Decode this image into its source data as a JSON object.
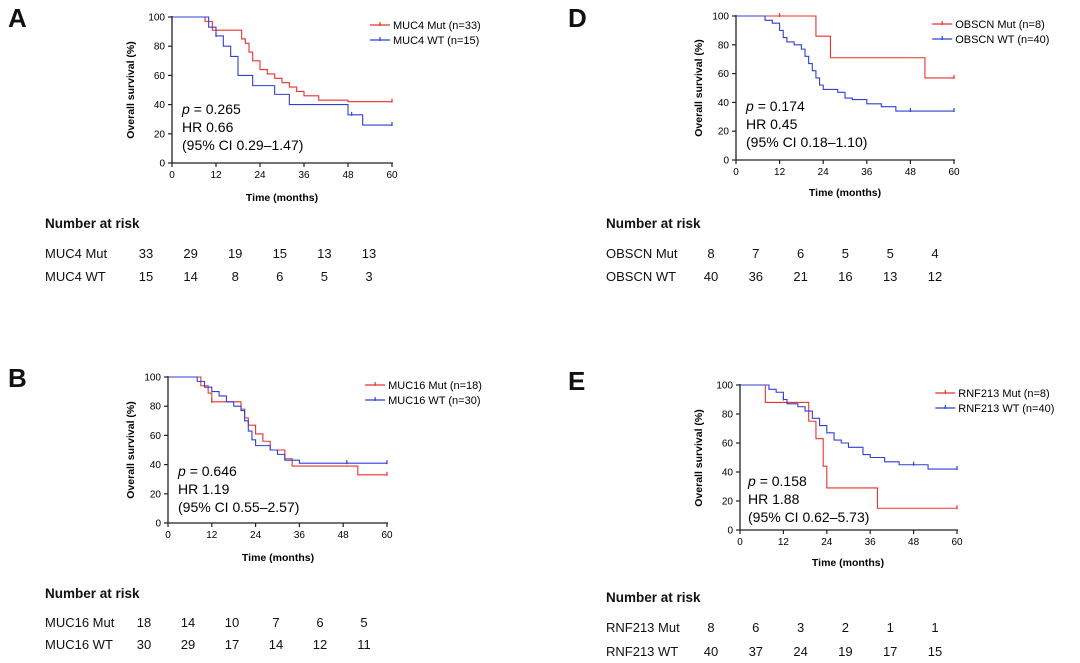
{
  "risk_title": "Number at risk",
  "panels": [
    {
      "label": "A",
      "ylabel": "Overall survival  (%)",
      "xlabel": "Time (months)",
      "stats": {
        "p_prefix": "p",
        "p_value": "= 0.265",
        "hr": "HR 0.66",
        "ci": "(95% CI 0.29–1.47)"
      },
      "risk": {
        "groups": [
          {
            "name": "MUC4 Mut",
            "values": [
              "33",
              "29",
              "19",
              "15",
              "13",
              "13"
            ]
          },
          {
            "name": "MUC4 WT",
            "values": [
              "15",
              "14",
              "8",
              "6",
              "5",
              "3"
            ]
          }
        ]
      }
    },
    {
      "label": "B",
      "ylabel": "Overall survival  (%)",
      "xlabel": "Time (months)",
      "stats": {
        "p_prefix": "p",
        "p_value": "= 0.646",
        "hr": "HR 1.19",
        "ci": "(95% CI 0.55–2.57)"
      },
      "risk": {
        "groups": [
          {
            "name": "MUC16 Mut",
            "values": [
              "18",
              "14",
              "10",
              "7",
              "6",
              "5"
            ]
          },
          {
            "name": "MUC16 WT",
            "values": [
              "30",
              "29",
              "17",
              "14",
              "12",
              "11"
            ]
          }
        ]
      }
    },
    {
      "label": "D",
      "ylabel": "Overall survival  (%)",
      "xlabel": "Time (months)",
      "stats": {
        "p_prefix": "p",
        "p_value": "= 0.174",
        "hr": "HR 0.45",
        "ci": "(95% CI 0.18–1.10)"
      },
      "risk": {
        "groups": [
          {
            "name": "OBSCN Mut",
            "values": [
              "8",
              "7",
              "6",
              "5",
              "5",
              "4"
            ]
          },
          {
            "name": "OBSCN WT",
            "values": [
              "40",
              "36",
              "21",
              "16",
              "13",
              "12"
            ]
          }
        ]
      }
    },
    {
      "label": "E",
      "ylabel": "Overall survival  (%)",
      "xlabel": "Time (months)",
      "stats": {
        "p_prefix": "p",
        "p_value": "= 0.158",
        "hr": "HR 1.88",
        "ci": "(95% CI 0.62–5.73)"
      },
      "risk": {
        "groups": [
          {
            "name": "RNF213 Mut",
            "values": [
              "8",
              "6",
              "3",
              "2",
              "1",
              "1"
            ]
          },
          {
            "name": "RNF213 WT",
            "values": [
              "40",
              "37",
              "24",
              "19",
              "17",
              "15"
            ]
          }
        ]
      }
    }
  ],
  "chart_data": [
    {
      "type": "line",
      "title": "A",
      "xlabel": "Time (months)",
      "ylabel": "Overall survival  (%)",
      "xlim": [
        0,
        60
      ],
      "ylim": [
        0,
        100
      ],
      "xticks": [
        0,
        12,
        24,
        36,
        48,
        60
      ],
      "yticks": [
        0,
        20,
        40,
        60,
        80,
        100
      ],
      "xtick_labels": [
        "0",
        "12",
        "24",
        "36",
        "48",
        "60"
      ],
      "ytick_labels": [
        "0",
        "20",
        "40",
        "60",
        "80",
        "100"
      ],
      "legend": "top-right",
      "series": [
        {
          "name": "MUC4 Mut (n=33)",
          "color": "#e8322e",
          "x": [
            0,
            9,
            11,
            18,
            19,
            20,
            21,
            22,
            24,
            26,
            28,
            30,
            32,
            34,
            36,
            40,
            48,
            60
          ],
          "y": [
            100,
            97,
            91,
            91,
            85,
            82,
            76,
            70,
            64,
            61,
            58,
            55,
            52,
            49,
            46,
            43,
            42,
            42
          ],
          "censored_x": [
            60
          ]
        },
        {
          "name": "MUC4 WT (n=15)",
          "color": "#2f3fd6",
          "x": [
            0,
            10,
            12,
            14,
            16,
            18,
            22,
            28,
            32,
            48,
            52,
            60
          ],
          "y": [
            100,
            93,
            87,
            80,
            73,
            60,
            53,
            47,
            40,
            33,
            26,
            26
          ],
          "censored_x": [
            12,
            49,
            60
          ]
        }
      ]
    },
    {
      "type": "line",
      "title": "B",
      "xlabel": "Time (months)",
      "ylabel": "Overall survival  (%)",
      "xlim": [
        0,
        60
      ],
      "ylim": [
        0,
        100
      ],
      "xticks": [
        0,
        12,
        24,
        36,
        48,
        60
      ],
      "yticks": [
        0,
        20,
        40,
        60,
        80,
        100
      ],
      "xtick_labels": [
        "0",
        "12",
        "24",
        "36",
        "48",
        "60"
      ],
      "ytick_labels": [
        "0",
        "20",
        "40",
        "60",
        "80",
        "100"
      ],
      "legend": "top-right",
      "series": [
        {
          "name": "MUC16 Mut (n=18)",
          "color": "#e8322e",
          "x": [
            0,
            9,
            11,
            12,
            20,
            21,
            22,
            24,
            26,
            28,
            32,
            34,
            40,
            52,
            60
          ],
          "y": [
            100,
            94,
            89,
            83,
            78,
            72,
            67,
            61,
            56,
            50,
            44,
            39,
            39,
            33,
            33
          ],
          "censored_x": [
            12,
            60
          ]
        },
        {
          "name": "MUC16 WT (n=30)",
          "color": "#2f3fd6",
          "x": [
            0,
            8,
            10,
            12,
            14,
            16,
            18,
            20,
            21,
            22,
            23,
            24,
            28,
            30,
            32,
            36,
            40,
            44,
            48,
            60
          ],
          "y": [
            100,
            97,
            93,
            90,
            87,
            83,
            80,
            77,
            70,
            63,
            57,
            53,
            50,
            47,
            43,
            41,
            41,
            41,
            41,
            41
          ],
          "censored_x": [
            49,
            60
          ]
        }
      ]
    },
    {
      "type": "line",
      "title": "D",
      "xlabel": "Time (months)",
      "ylabel": "Overall survival  (%)",
      "xlim": [
        0,
        60
      ],
      "ylim": [
        0,
        100
      ],
      "xticks": [
        0,
        12,
        24,
        36,
        48,
        60
      ],
      "yticks": [
        0,
        20,
        40,
        60,
        80,
        100
      ],
      "xtick_labels": [
        "0",
        "12",
        "24",
        "36",
        "48",
        "60"
      ],
      "ytick_labels": [
        "0",
        "20",
        "40",
        "60",
        "80",
        "100"
      ],
      "legend": "top-right",
      "series": [
        {
          "name": "OBSCN Mut (n=8)",
          "color": "#e8322e",
          "x": [
            0,
            22,
            26,
            52,
            60
          ],
          "y": [
            100,
            86,
            71,
            57,
            57
          ],
          "censored_x": [
            12,
            60
          ]
        },
        {
          "name": "OBSCN WT (n=40)",
          "color": "#2f3fd6",
          "x": [
            0,
            8,
            10,
            12,
            13,
            14,
            16,
            18,
            19,
            20,
            21,
            22,
            23,
            24,
            28,
            30,
            32,
            36,
            40,
            44,
            60
          ],
          "y": [
            100,
            97,
            95,
            90,
            85,
            82,
            80,
            77,
            72,
            67,
            62,
            57,
            52,
            49,
            47,
            43,
            42,
            39,
            37,
            34,
            34
          ],
          "censored_x": [
            48,
            60
          ]
        }
      ]
    },
    {
      "type": "line",
      "title": "E",
      "xlabel": "Time (months)",
      "ylabel": "Overall survival  (%)",
      "xlim": [
        0,
        60
      ],
      "ylim": [
        0,
        100
      ],
      "xticks": [
        0,
        12,
        24,
        36,
        48,
        60
      ],
      "yticks": [
        0,
        20,
        40,
        60,
        80,
        100
      ],
      "xtick_labels": [
        "0",
        "12",
        "24",
        "36",
        "48",
        "60"
      ],
      "ytick_labels": [
        "0",
        "20",
        "40",
        "60",
        "80",
        "100"
      ],
      "legend": "top-right",
      "series": [
        {
          "name": "RNF213 Mut (n=8)",
          "color": "#e8322e",
          "x": [
            0,
            7,
            19,
            21,
            23,
            24,
            38,
            60
          ],
          "y": [
            100,
            88,
            75,
            63,
            44,
            29,
            15,
            15
          ],
          "censored_x": [
            60
          ]
        },
        {
          "name": "RNF213 WT (n=40)",
          "color": "#2f3fd6",
          "x": [
            0,
            8,
            10,
            12,
            13,
            16,
            18,
            20,
            22,
            24,
            26,
            28,
            30,
            34,
            36,
            40,
            44,
            52,
            60
          ],
          "y": [
            100,
            97,
            95,
            90,
            87,
            85,
            82,
            77,
            72,
            67,
            62,
            60,
            57,
            52,
            50,
            47,
            45,
            42,
            42
          ],
          "censored_x": [
            12,
            48,
            60
          ]
        }
      ]
    }
  ]
}
